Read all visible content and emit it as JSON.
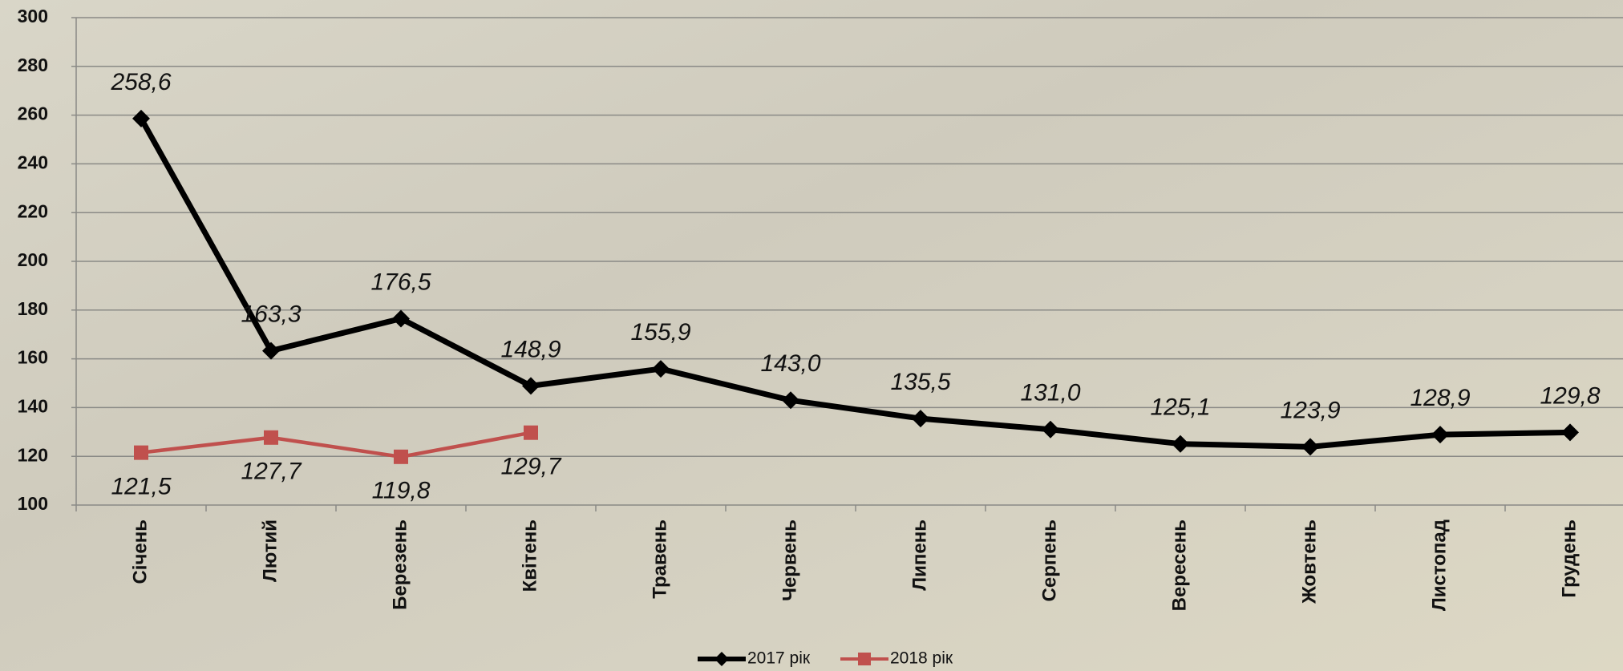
{
  "chart_data": {
    "type": "line",
    "categories": [
      "Січень",
      "Лютий",
      "Березень",
      "Квітень",
      "Травень",
      "Червень",
      "Липень",
      "Серпень",
      "Вересень",
      "Жовтень",
      "Листопад",
      "Грудень"
    ],
    "series": [
      {
        "name": "2017 рік",
        "color": "#000000",
        "marker": "diamond",
        "values": [
          258.6,
          163.3,
          176.5,
          148.9,
          155.9,
          143.0,
          135.5,
          131.0,
          125.1,
          123.9,
          128.9,
          129.8
        ],
        "value_labels": [
          "258,6",
          "163,3",
          "176,5",
          "148,9",
          "155,9",
          "143,0",
          "135,5",
          "131,0",
          "125,1",
          "123,9",
          "128,9",
          "129,8"
        ]
      },
      {
        "name": "2018 рік",
        "color": "#c0504d",
        "marker": "square",
        "values": [
          121.5,
          127.7,
          119.8,
          129.7,
          null,
          null,
          null,
          null,
          null,
          null,
          null,
          null
        ],
        "value_labels": [
          "121,5",
          "127,7",
          "119,8",
          "129,7",
          null,
          null,
          null,
          null,
          null,
          null,
          null,
          null
        ]
      }
    ],
    "ylim": [
      100,
      300
    ],
    "yticks": [
      100,
      120,
      140,
      160,
      180,
      200,
      220,
      240,
      260,
      280,
      300
    ],
    "grid": true,
    "legend": "bottom"
  }
}
